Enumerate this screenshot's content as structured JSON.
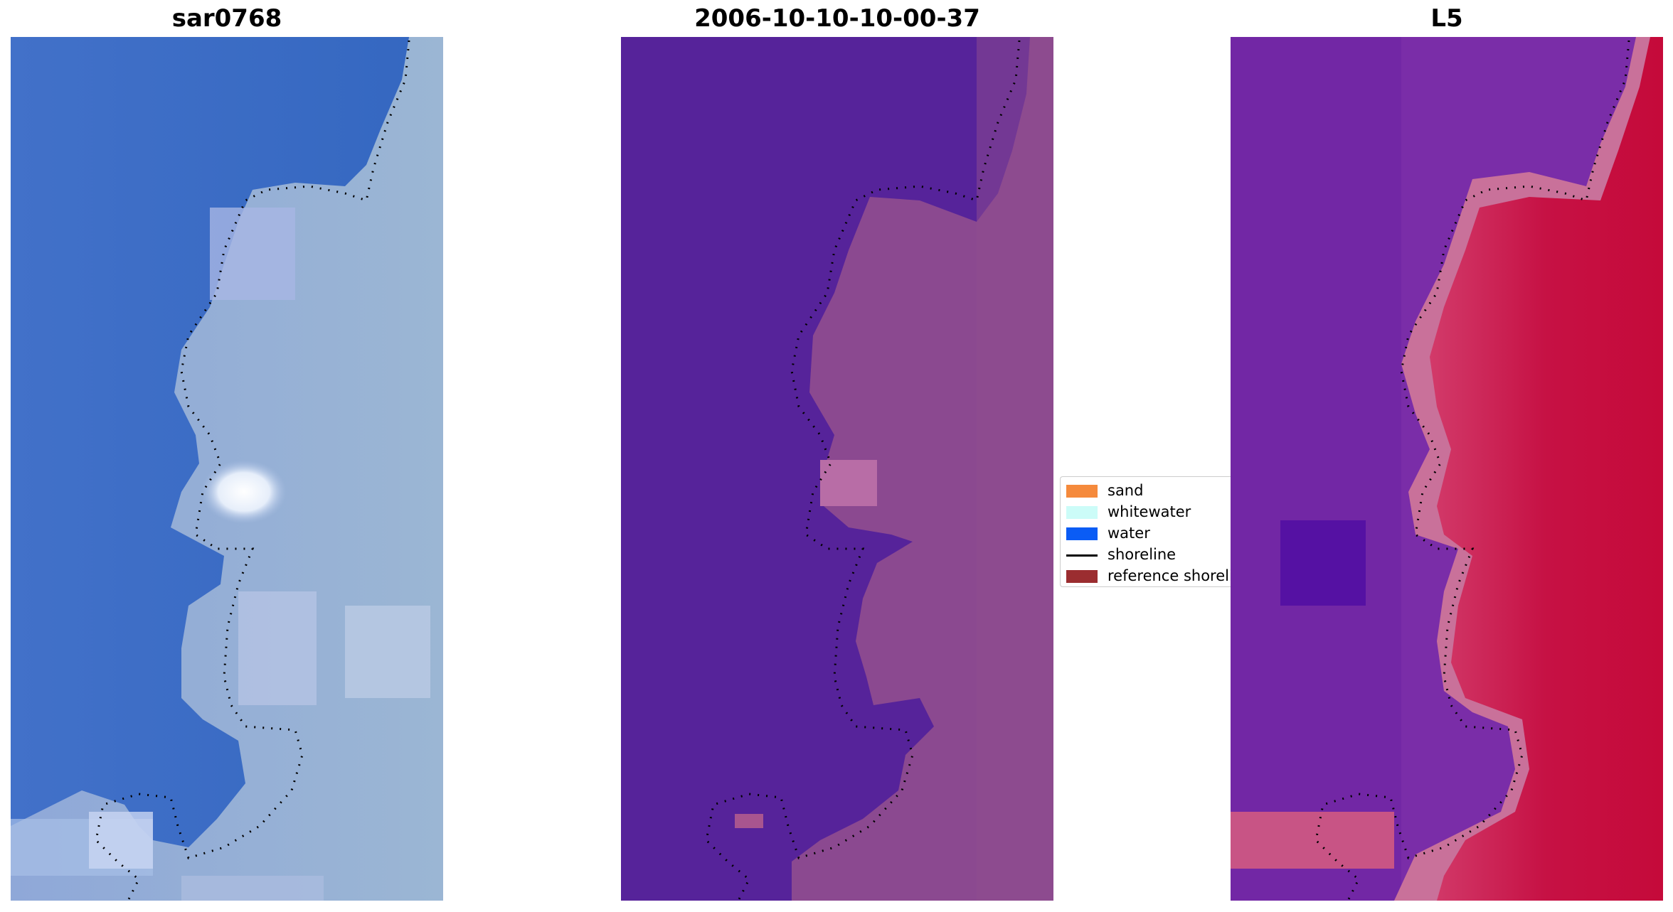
{
  "panels": [
    {
      "title": "sar0768",
      "image": "rgb-satellite-image"
    },
    {
      "title": "2006-10-10-10-00-37",
      "image": "classified-image"
    },
    {
      "title": "L5",
      "image": "mndwi-index-image"
    }
  ],
  "legend": {
    "items": [
      {
        "label": "sand",
        "color": "#f58a3c",
        "kind": "patch"
      },
      {
        "label": "whitewater",
        "color": "#ccfcf8",
        "kind": "patch"
      },
      {
        "label": "water",
        "color": "#0a5cf5",
        "kind": "patch"
      },
      {
        "label": "shoreline",
        "color": "#000000",
        "kind": "line"
      },
      {
        "label": "reference shoreline",
        "color": "#9b2d30",
        "kind": "patch"
      }
    ]
  },
  "colors": {
    "sea_rgb": "#3c6fc6",
    "land_rgb": "#9db5db",
    "class_water": "#56239a",
    "class_land": "#8c4a92",
    "index_low": "#6e2aa6",
    "index_high": "#cc0d3e"
  }
}
